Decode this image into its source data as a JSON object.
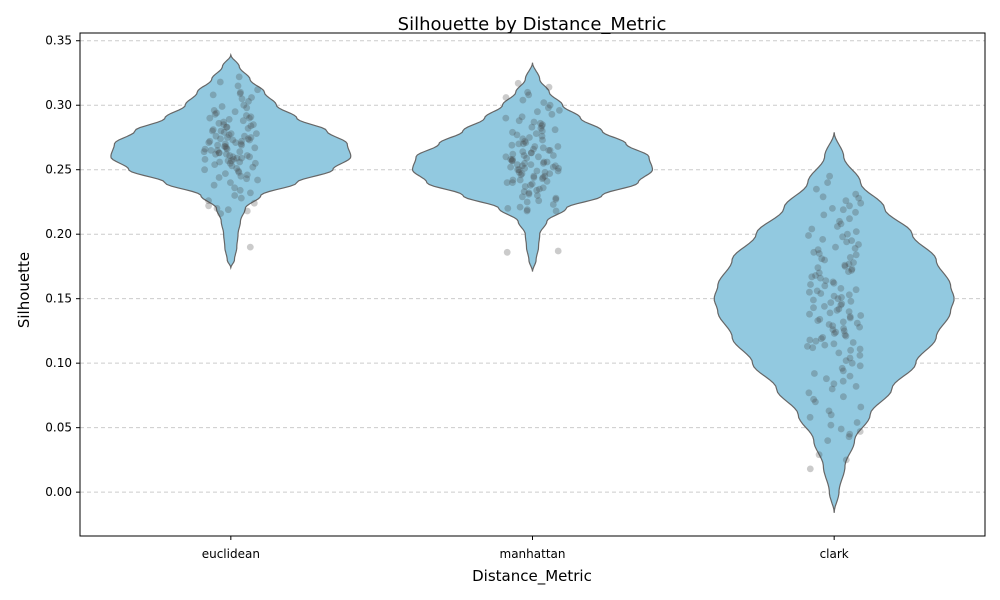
{
  "chart_data": {
    "type": "violin",
    "title": "Silhouette by Distance_Metric",
    "xlabel": "Distance_Metric",
    "ylabel": "Silhouette",
    "categories": [
      "euclidean",
      "manhattan",
      "clark"
    ],
    "ylim": [
      -0.034,
      0.356
    ],
    "yticks": [
      0.0,
      0.05,
      0.1,
      0.15,
      0.2,
      0.25,
      0.3,
      0.35
    ],
    "ytick_labels": [
      "0.00",
      "0.05",
      "0.10",
      "0.15",
      "0.20",
      "0.25",
      "0.30",
      "0.35"
    ],
    "grid": "horizontal, dashed",
    "violin_color": "#92c9e0",
    "edge_color": "#666666",
    "point_color": "#444444",
    "distributions": [
      {
        "category": "euclidean",
        "profile": [
          [
            0.174,
            0.0
          ],
          [
            0.18,
            0.03
          ],
          [
            0.19,
            0.05
          ],
          [
            0.2,
            0.06
          ],
          [
            0.21,
            0.08
          ],
          [
            0.22,
            0.12
          ],
          [
            0.23,
            0.25
          ],
          [
            0.24,
            0.55
          ],
          [
            0.25,
            0.85
          ],
          [
            0.26,
            1.0
          ],
          [
            0.27,
            0.97
          ],
          [
            0.28,
            0.8
          ],
          [
            0.29,
            0.55
          ],
          [
            0.3,
            0.38
          ],
          [
            0.31,
            0.28
          ],
          [
            0.32,
            0.16
          ],
          [
            0.33,
            0.07
          ],
          [
            0.339,
            0.0
          ]
        ]
      },
      {
        "category": "manhattan",
        "profile": [
          [
            0.171,
            0.0
          ],
          [
            0.18,
            0.03
          ],
          [
            0.19,
            0.05
          ],
          [
            0.2,
            0.06
          ],
          [
            0.21,
            0.12
          ],
          [
            0.22,
            0.28
          ],
          [
            0.23,
            0.58
          ],
          [
            0.24,
            0.88
          ],
          [
            0.25,
            1.0
          ],
          [
            0.26,
            0.97
          ],
          [
            0.27,
            0.78
          ],
          [
            0.28,
            0.58
          ],
          [
            0.29,
            0.4
          ],
          [
            0.3,
            0.25
          ],
          [
            0.31,
            0.14
          ],
          [
            0.32,
            0.06
          ],
          [
            0.333,
            0.0
          ]
        ]
      },
      {
        "category": "clark",
        "profile": [
          [
            -0.016,
            0.0
          ],
          [
            0.0,
            0.04
          ],
          [
            0.02,
            0.09
          ],
          [
            0.04,
            0.17
          ],
          [
            0.06,
            0.3
          ],
          [
            0.08,
            0.48
          ],
          [
            0.1,
            0.68
          ],
          [
            0.12,
            0.85
          ],
          [
            0.14,
            0.97
          ],
          [
            0.15,
            1.0
          ],
          [
            0.16,
            0.97
          ],
          [
            0.18,
            0.85
          ],
          [
            0.2,
            0.65
          ],
          [
            0.22,
            0.42
          ],
          [
            0.24,
            0.22
          ],
          [
            0.26,
            0.08
          ],
          [
            0.279,
            0.0
          ]
        ]
      }
    ],
    "points": [
      {
        "category": "euclidean",
        "values": [
          0.322,
          0.318,
          0.315,
          0.312,
          0.31,
          0.309,
          0.308,
          0.306,
          0.305,
          0.303,
          0.3,
          0.299,
          0.298,
          0.296,
          0.295,
          0.294,
          0.293,
          0.292,
          0.291,
          0.29,
          0.29,
          0.289,
          0.288,
          0.287,
          0.286,
          0.285,
          0.285,
          0.284,
          0.283,
          0.283,
          0.282,
          0.281,
          0.28,
          0.28,
          0.279,
          0.278,
          0.278,
          0.277,
          0.276,
          0.276,
          0.275,
          0.275,
          0.274,
          0.274,
          0.273,
          0.273,
          0.272,
          0.272,
          0.271,
          0.271,
          0.27,
          0.27,
          0.269,
          0.269,
          0.268,
          0.268,
          0.267,
          0.267,
          0.266,
          0.266,
          0.265,
          0.265,
          0.264,
          0.264,
          0.263,
          0.263,
          0.262,
          0.262,
          0.261,
          0.261,
          0.26,
          0.26,
          0.259,
          0.259,
          0.258,
          0.258,
          0.257,
          0.257,
          0.256,
          0.256,
          0.255,
          0.255,
          0.254,
          0.253,
          0.252,
          0.251,
          0.25,
          0.249,
          0.248,
          0.247,
          0.246,
          0.245,
          0.244,
          0.243,
          0.242,
          0.24,
          0.238,
          0.236,
          0.234,
          0.232,
          0.23,
          0.228,
          0.226,
          0.224,
          0.222,
          0.22,
          0.219,
          0.218,
          0.216,
          0.19
        ]
      },
      {
        "category": "manhattan",
        "values": [
          0.317,
          0.314,
          0.31,
          0.308,
          0.306,
          0.304,
          0.302,
          0.3,
          0.298,
          0.296,
          0.295,
          0.293,
          0.291,
          0.29,
          0.288,
          0.287,
          0.286,
          0.285,
          0.284,
          0.283,
          0.282,
          0.281,
          0.28,
          0.279,
          0.278,
          0.277,
          0.276,
          0.275,
          0.274,
          0.273,
          0.272,
          0.271,
          0.27,
          0.27,
          0.269,
          0.268,
          0.268,
          0.267,
          0.266,
          0.265,
          0.265,
          0.264,
          0.263,
          0.263,
          0.262,
          0.261,
          0.261,
          0.26,
          0.26,
          0.259,
          0.258,
          0.258,
          0.257,
          0.257,
          0.256,
          0.256,
          0.255,
          0.255,
          0.254,
          0.254,
          0.253,
          0.253,
          0.252,
          0.252,
          0.251,
          0.251,
          0.25,
          0.25,
          0.249,
          0.249,
          0.248,
          0.248,
          0.247,
          0.247,
          0.246,
          0.245,
          0.245,
          0.244,
          0.244,
          0.243,
          0.242,
          0.242,
          0.241,
          0.24,
          0.24,
          0.239,
          0.238,
          0.237,
          0.236,
          0.235,
          0.234,
          0.233,
          0.232,
          0.231,
          0.23,
          0.229,
          0.228,
          0.227,
          0.226,
          0.225,
          0.223,
          0.221,
          0.22,
          0.219,
          0.218,
          0.218,
          0.187,
          0.186
        ]
      },
      {
        "category": "clark",
        "values": [
          0.245,
          0.24,
          0.235,
          0.231,
          0.229,
          0.228,
          0.226,
          0.224,
          0.222,
          0.22,
          0.219,
          0.217,
          0.215,
          0.212,
          0.21,
          0.208,
          0.206,
          0.204,
          0.202,
          0.2,
          0.199,
          0.198,
          0.196,
          0.195,
          0.194,
          0.192,
          0.19,
          0.189,
          0.188,
          0.186,
          0.185,
          0.184,
          0.182,
          0.181,
          0.18,
          0.178,
          0.177,
          0.176,
          0.175,
          0.174,
          0.173,
          0.172,
          0.171,
          0.17,
          0.168,
          0.167,
          0.166,
          0.164,
          0.163,
          0.162,
          0.161,
          0.16,
          0.158,
          0.157,
          0.156,
          0.155,
          0.154,
          0.153,
          0.152,
          0.151,
          0.15,
          0.149,
          0.148,
          0.147,
          0.146,
          0.145,
          0.144,
          0.143,
          0.142,
          0.141,
          0.14,
          0.139,
          0.138,
          0.137,
          0.136,
          0.135,
          0.134,
          0.133,
          0.132,
          0.131,
          0.13,
          0.129,
          0.128,
          0.127,
          0.126,
          0.125,
          0.124,
          0.123,
          0.122,
          0.121,
          0.12,
          0.119,
          0.118,
          0.117,
          0.116,
          0.115,
          0.114,
          0.113,
          0.112,
          0.111,
          0.11,
          0.108,
          0.106,
          0.104,
          0.102,
          0.1,
          0.098,
          0.096,
          0.094,
          0.092,
          0.09,
          0.088,
          0.086,
          0.084,
          0.082,
          0.08,
          0.077,
          0.074,
          0.072,
          0.07,
          0.066,
          0.063,
          0.06,
          0.058,
          0.054,
          0.052,
          0.049,
          0.047,
          0.045,
          0.043,
          0.04,
          0.029,
          0.025,
          0.018
        ]
      }
    ]
  }
}
